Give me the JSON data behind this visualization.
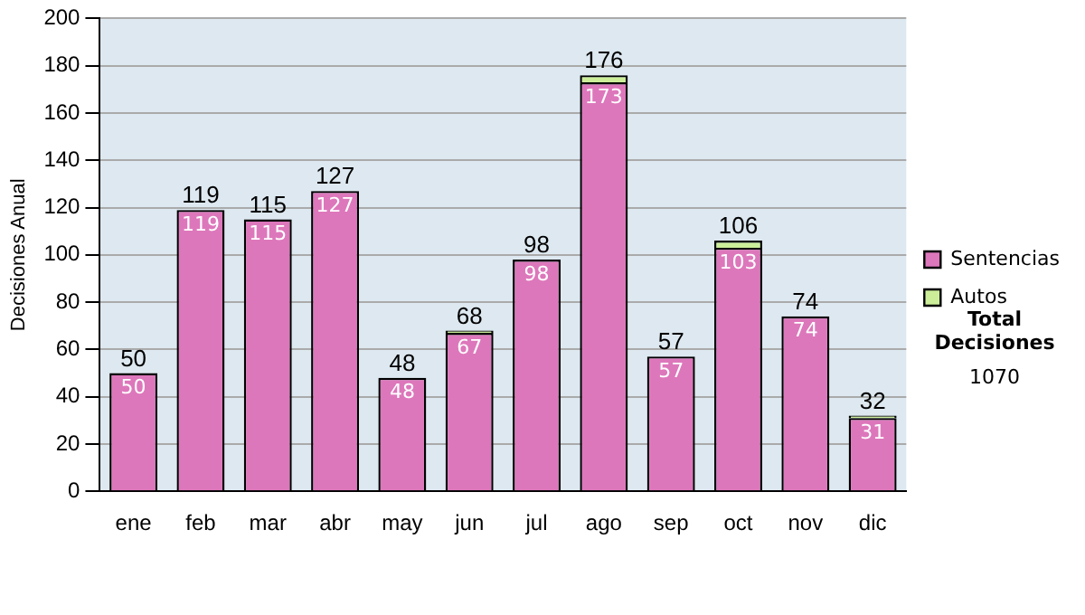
{
  "chart_data": {
    "type": "bar",
    "stacked": true,
    "ylabel": "Decisiones Anual",
    "categories": [
      "ene",
      "feb",
      "mar",
      "abr",
      "may",
      "jun",
      "jul",
      "ago",
      "sep",
      "oct",
      "nov",
      "dic"
    ],
    "series": [
      {
        "name": "Sentencias",
        "color": "#dd77bb",
        "values": [
          50,
          119,
          115,
          127,
          48,
          67,
          98,
          173,
          57,
          103,
          74,
          31
        ],
        "value_labels": [
          "50",
          "119",
          "115",
          "127",
          "48",
          "67",
          "98",
          "173",
          "57",
          "103",
          "74",
          "31"
        ]
      },
      {
        "name": "Autos",
        "color": "#ccee99",
        "values": [
          0,
          0,
          0,
          0,
          0,
          1,
          0,
          3,
          0,
          3,
          0,
          1
        ]
      }
    ],
    "totals": [
      "50",
      "119",
      "115",
      "127",
      "48",
      "68",
      "98",
      "176",
      "57",
      "106",
      "74",
      "32"
    ],
    "ylim": [
      0,
      200
    ],
    "yticks": [
      0,
      20,
      40,
      60,
      80,
      100,
      120,
      140,
      160,
      180,
      200
    ],
    "grid": "y",
    "legend": "right",
    "annotations": [
      "Total Decisiones",
      "1070"
    ]
  }
}
